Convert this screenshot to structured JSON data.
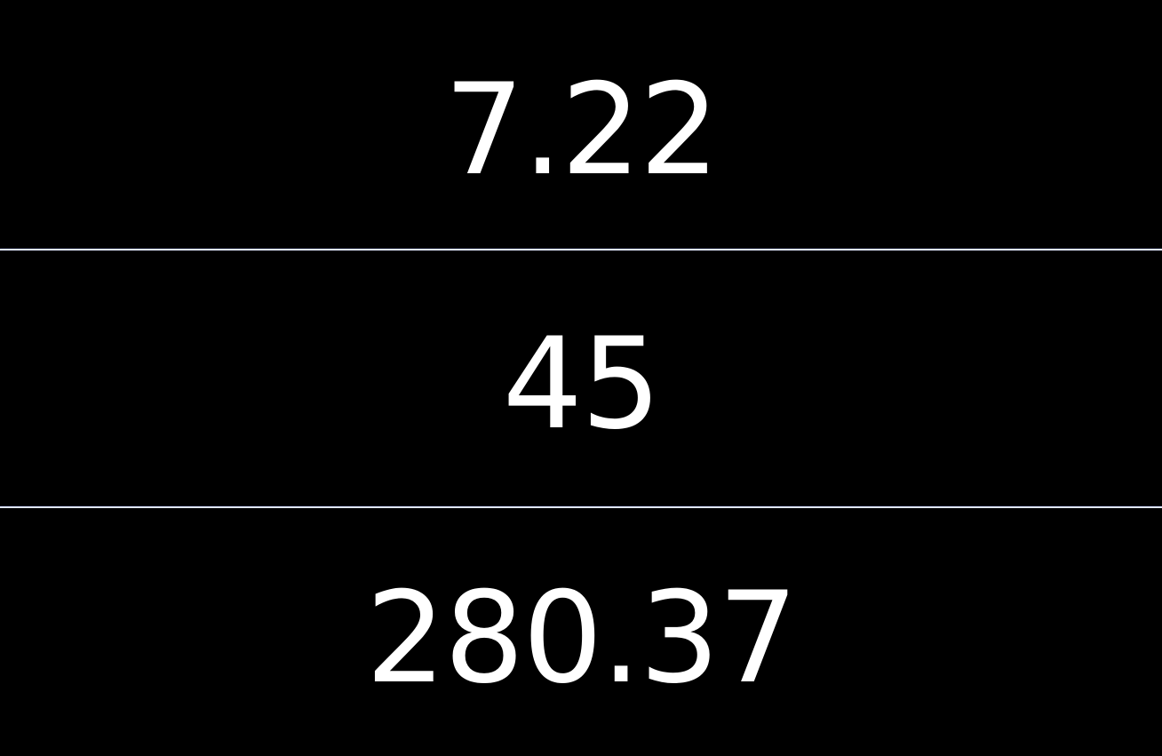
{
  "values": [
    {
      "text": "7.22"
    },
    {
      "text": "45"
    },
    {
      "text": "280.37"
    }
  ],
  "colors": {
    "background": "#000000",
    "text": "#ffffff",
    "divider": "#dfe6ff"
  }
}
